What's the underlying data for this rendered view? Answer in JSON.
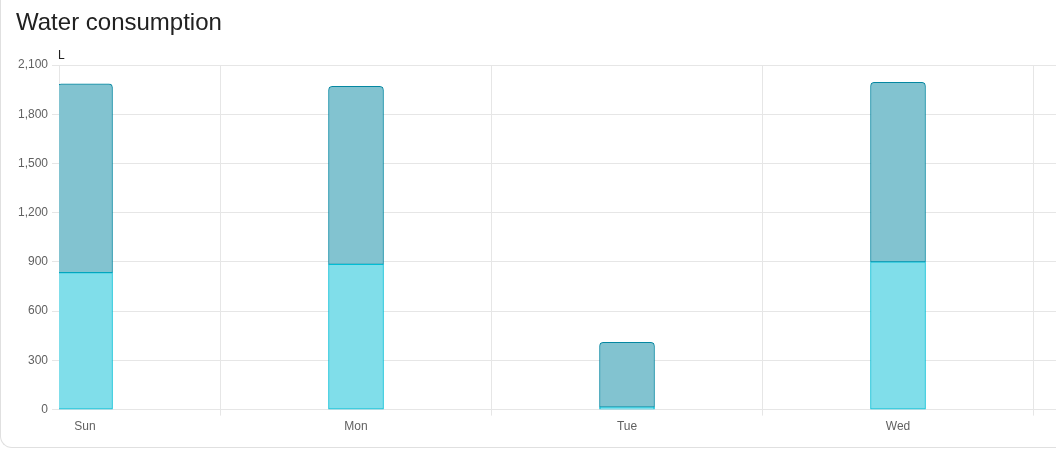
{
  "chart_data": {
    "type": "bar",
    "title": "Water consumption",
    "ylabel": "L",
    "categories": [
      "Sun",
      "Mon",
      "Tue",
      "Wed"
    ],
    "stacked": true,
    "series": [
      {
        "color": "#80deea",
        "values": [
          835,
          885,
          15,
          900
        ]
      },
      {
        "color": "#82c3d0",
        "values": [
          1150,
          1085,
          395,
          1095
        ]
      }
    ],
    "ylim": [
      0,
      2100
    ],
    "yticks": [
      0,
      300,
      600,
      900,
      {
        "value": 1200,
        "label": "1,200"
      },
      {
        "value": 1500,
        "label": "1,500"
      },
      {
        "value": 1800,
        "label": "1,800"
      },
      {
        "value": 2100,
        "label": "2,100"
      }
    ],
    "grid": true
  }
}
